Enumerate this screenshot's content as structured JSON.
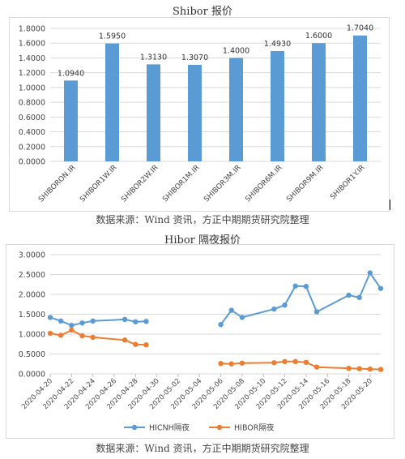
{
  "chart1": {
    "title": "Shibor 报价",
    "source": "数据来源：Wind 资讯，方正中期期货研究院整理",
    "color": "#5b9bd5"
  },
  "chart2": {
    "title": "Hibor 隔夜报价",
    "source": "数据来源：Wind 资讯，方正中期期货研究院整理",
    "colors": {
      "HICNH隔夜": "#5b9bd5",
      "HIBOR隔夜": "#ed7d31"
    }
  },
  "chart_data": [
    {
      "type": "bar",
      "title": "Shibor 报价",
      "categories": [
        "SHIBORON.IR",
        "SHIBOR1W.IR",
        "SHIBOR2W.IR",
        "SHIBOR1M.IR",
        "SHIBOR3M.IR",
        "SHIBOR6M.IR",
        "SHIBOR9M.IR",
        "SHIBOR1Y.IR"
      ],
      "values": [
        1.094,
        1.595,
        1.313,
        1.307,
        1.4,
        1.493,
        1.6,
        1.704
      ],
      "data_labels": [
        "1.0940",
        "1.5950",
        "1.3130",
        "1.3070",
        "1.4000",
        "1.4930",
        "1.6000",
        "1.7040"
      ],
      "ylim": [
        0,
        1.8
      ],
      "yticks": [
        0,
        0.2,
        0.4,
        0.6,
        0.8,
        1.0,
        1.2,
        1.4,
        1.6,
        1.8
      ],
      "ytick_labels": [
        "0.0000",
        "0.2000",
        "0.4000",
        "0.6000",
        "0.8000",
        "1.0000",
        "1.2000",
        "1.4000",
        "1.6000",
        "1.8000"
      ],
      "grid": true
    },
    {
      "type": "line",
      "title": "Hibor 隔夜报价",
      "x_range": [
        "2020-04-20",
        "2020-05-21"
      ],
      "xticks": [
        "2020-04-20",
        "2020-04-22",
        "2020-04-24",
        "2020-04-26",
        "2020-04-28",
        "2020-04-30",
        "2020-05-02",
        "2020-05-04",
        "2020-05-06",
        "2020-05-08",
        "2020-05-10",
        "2020-05-12",
        "2020-05-14",
        "2020-05-16",
        "2020-05-18",
        "2020-05-20"
      ],
      "ylim": [
        0,
        3
      ],
      "yticks": [
        0,
        0.5,
        1.0,
        1.5,
        2.0,
        2.5,
        3.0
      ],
      "ytick_labels": [
        "0.0000",
        "0.5000",
        "1.0000",
        "1.5000",
        "2.0000",
        "2.5000",
        "3.0000"
      ],
      "grid": true,
      "legend": "bottom",
      "series": [
        {
          "name": "HICNH隔夜",
          "points": [
            [
              "2020-04-20",
              1.42
            ],
            [
              "2020-04-21",
              1.33
            ],
            [
              "2020-04-22",
              1.22
            ],
            [
              "2020-04-23",
              1.28
            ],
            [
              "2020-04-24",
              1.33
            ],
            [
              "2020-04-27",
              1.37
            ],
            [
              "2020-04-28",
              1.31
            ],
            [
              "2020-04-29",
              1.32
            ],
            [
              "2020-05-06",
              1.24
            ],
            [
              "2020-05-07",
              1.6
            ],
            [
              "2020-05-08",
              1.42
            ],
            [
              "2020-05-11",
              1.63
            ],
            [
              "2020-05-12",
              1.73
            ],
            [
              "2020-05-13",
              2.21
            ],
            [
              "2020-05-14",
              2.2
            ],
            [
              "2020-05-15",
              1.56
            ],
            [
              "2020-05-18",
              1.98
            ],
            [
              "2020-05-19",
              1.92
            ],
            [
              "2020-05-20",
              2.54
            ],
            [
              "2020-05-21",
              2.15
            ]
          ]
        },
        {
          "name": "HIBOR隔夜",
          "points": [
            [
              "2020-04-20",
              1.02
            ],
            [
              "2020-04-21",
              0.97
            ],
            [
              "2020-04-22",
              1.1
            ],
            [
              "2020-04-23",
              0.96
            ],
            [
              "2020-04-24",
              0.92
            ],
            [
              "2020-04-27",
              0.85
            ],
            [
              "2020-04-28",
              0.74
            ],
            [
              "2020-04-29",
              0.73
            ],
            [
              "2020-05-06",
              0.26
            ],
            [
              "2020-05-07",
              0.25
            ],
            [
              "2020-05-08",
              0.27
            ],
            [
              "2020-05-11",
              0.28
            ],
            [
              "2020-05-12",
              0.31
            ],
            [
              "2020-05-13",
              0.31
            ],
            [
              "2020-05-14",
              0.29
            ],
            [
              "2020-05-15",
              0.17
            ],
            [
              "2020-05-18",
              0.14
            ],
            [
              "2020-05-19",
              0.13
            ],
            [
              "2020-05-20",
              0.12
            ],
            [
              "2020-05-21",
              0.11
            ]
          ]
        }
      ]
    }
  ]
}
